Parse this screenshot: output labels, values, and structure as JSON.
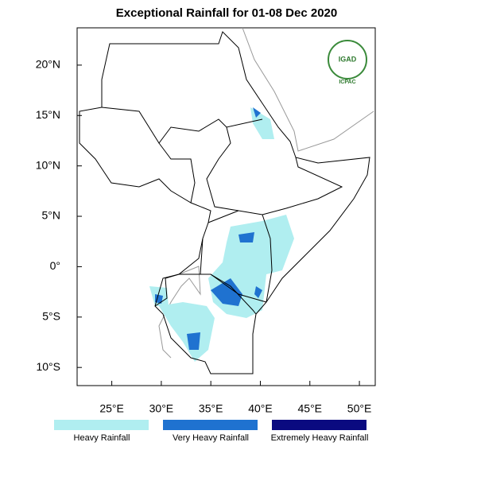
{
  "title": "Exceptional Rainfall for 01-08 Dec 2020",
  "logo": {
    "name": "IGAD",
    "subtitle": "ICPAC"
  },
  "map": {
    "xlim": [
      21.5,
      51.6
    ],
    "ylim": [
      -11.8,
      23.7
    ],
    "xticks": [
      {
        "value": 25,
        "label": "25°E"
      },
      {
        "value": 30,
        "label": "30°E"
      },
      {
        "value": 35,
        "label": "35°E"
      },
      {
        "value": 40,
        "label": "40°E"
      },
      {
        "value": 45,
        "label": "45°E"
      },
      {
        "value": 50,
        "label": "50°E"
      }
    ],
    "yticks": [
      {
        "value": 20,
        "label": "20°N"
      },
      {
        "value": 15,
        "label": "15°N"
      },
      {
        "value": 10,
        "label": "10°N"
      },
      {
        "value": 5,
        "label": "5°N"
      },
      {
        "value": 0,
        "label": "0°"
      },
      {
        "value": -5,
        "label": "5°S"
      },
      {
        "value": -10,
        "label": "10°S"
      }
    ]
  },
  "legend": [
    {
      "name": "Heavy Rainfall",
      "color": "#b0eef0"
    },
    {
      "name": "Very Heavy Rainfall",
      "color": "#1f72d0"
    },
    {
      "name": "Extremely Heavy Rainfall",
      "color": "#0a0a80"
    }
  ]
}
